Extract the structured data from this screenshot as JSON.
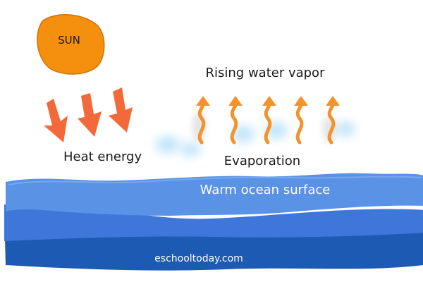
{
  "diagram": {
    "sun_label": "SUN",
    "heat_label": "Heat energy",
    "vapor_label": "Rising water vapor",
    "evaporation_label": "Evaporation",
    "ocean_label": "Warm ocean surface",
    "website": "eschooltoday.com"
  },
  "colors": {
    "sun_fill": "#f5900f",
    "heat_arrow": "#f4693a",
    "vapor_arrow": "#f4932c",
    "vapor_glow": "#8fd0f5",
    "ocean_top": "#5a92e6",
    "ocean_mid": "#3f76d9",
    "ocean_deep": "#1d5ab4",
    "ocean_text": "#ffffff"
  },
  "icons": {
    "sun": "sun-icon",
    "heat_arrows": "arrow-down-icon",
    "vapor_arrows": "wavy-arrow-up-icon"
  }
}
